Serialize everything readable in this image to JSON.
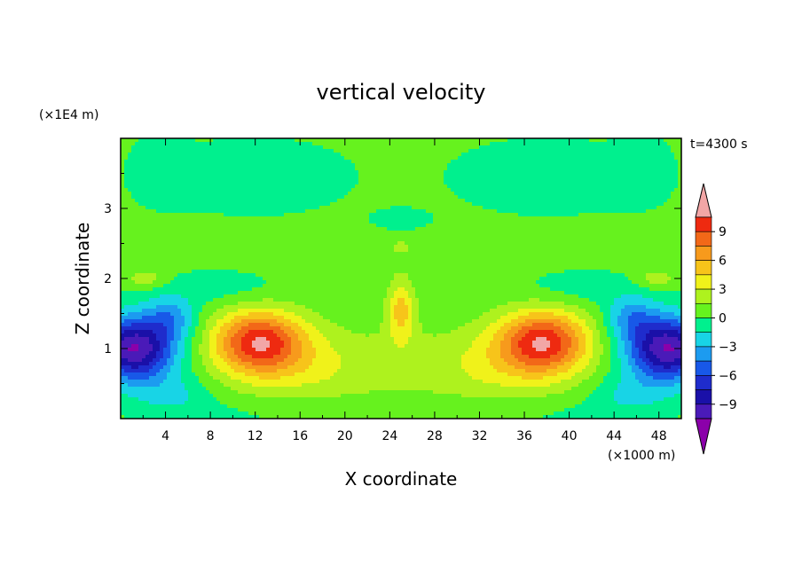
{
  "chart_data": {
    "type": "heatmap",
    "title": "vertical velocity",
    "xlabel": "X coordinate",
    "ylabel": "Z coordinate",
    "x_units": "(×1000 m)",
    "y_units": "(×1E4 m)",
    "time_label": "t=4300 s",
    "xlim": [
      0,
      50
    ],
    "ylim": [
      0,
      4
    ],
    "x_ticks": [
      4,
      8,
      12,
      16,
      20,
      24,
      28,
      32,
      36,
      40,
      44,
      48
    ],
    "y_ticks": [
      1,
      2,
      3
    ],
    "grid": false,
    "colorbar": {
      "placement": "right",
      "min": -10.5,
      "max": 10.5,
      "tick_labels": [
        "9",
        "6",
        "3",
        "0",
        "-3",
        "-6",
        "-9"
      ],
      "levels": [
        -10.5,
        -9,
        -7.5,
        -6,
        -4.5,
        -3,
        -1.5,
        0,
        1.5,
        3,
        4.5,
        6,
        7.5,
        9,
        10.5
      ],
      "colors": [
        "#8b00aa",
        "#4a1ab8",
        "#1a10a8",
        "#1f2ccc",
        "#1858e8",
        "#1c9bf0",
        "#18d4e6",
        "#00f08e",
        "#66f21e",
        "#aef21e",
        "#f0f21a",
        "#f7c41a",
        "#f79a1c",
        "#f26818",
        "#ee2a10",
        "#f2a6a6"
      ]
    },
    "features": [
      {
        "name": "updraft-left",
        "x": 12.3,
        "z": 1.1,
        "peak": 9
      },
      {
        "name": "updraft-right",
        "x": 37.8,
        "z": 1.1,
        "peak": 9
      },
      {
        "name": "central-updraft",
        "x": 25,
        "z": 1.55,
        "peak": 4.5
      },
      {
        "name": "downdraft-left",
        "x": 2,
        "z": 1.0,
        "peak": -10
      },
      {
        "name": "downdraft-right",
        "x": 48,
        "z": 1.0,
        "peak": -10
      }
    ]
  }
}
